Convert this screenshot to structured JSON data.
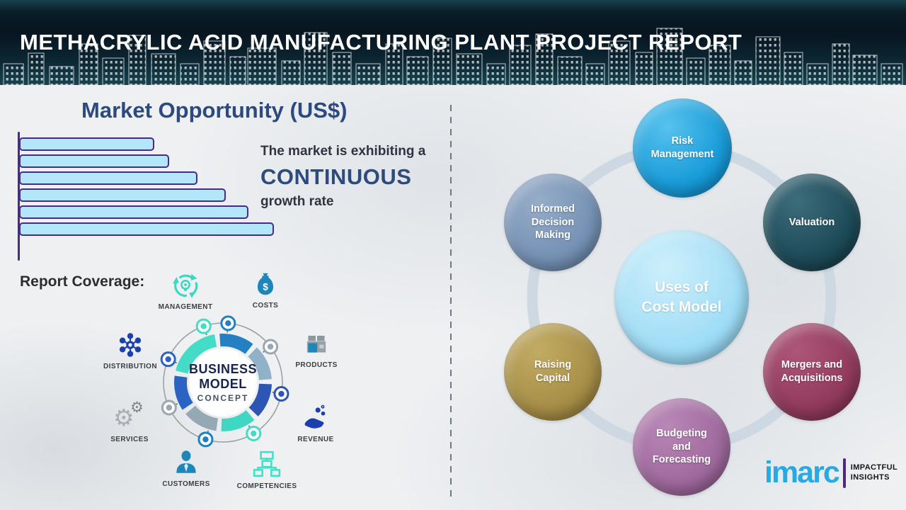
{
  "header": {
    "title": "METHACRYLIC ACID MANUFACTURING PLANT PROJECT REPORT"
  },
  "market": {
    "title": "Market Opportunity (US$)",
    "subtitle_line1": "The market is exhibiting a",
    "highlight": "CONTINUOUS",
    "subtitle_line2": "growth rate"
  },
  "chart_data": {
    "type": "bar",
    "orientation": "horizontal",
    "title": "Market Opportunity (US$)",
    "categories": [
      "",
      "",
      "",
      "",
      "",
      ""
    ],
    "values": [
      53,
      59,
      70,
      81,
      90,
      100
    ],
    "units": "relative (no axis tick labels shown)",
    "bar_fill": "#b3e5fb",
    "bar_border": "#4a2a85",
    "annotation": "The market is exhibiting a CONTINUOUS growth rate",
    "grid": false,
    "legend": false
  },
  "report_coverage": {
    "label": "Report Coverage:",
    "center": {
      "line1": "BUSINESS",
      "line2": "MODEL",
      "line3": "CONCEPT"
    },
    "items": [
      {
        "label": "MANAGEMENT",
        "icon": "management-icon"
      },
      {
        "label": "COSTS",
        "icon": "costs-icon"
      },
      {
        "label": "DISTRIBUTION",
        "icon": "distribution-icon"
      },
      {
        "label": "PRODUCTS",
        "icon": "products-icon"
      },
      {
        "label": "SERVICES",
        "icon": "services-icon"
      },
      {
        "label": "REVENUE",
        "icon": "revenue-icon"
      },
      {
        "label": "CUSTOMERS",
        "icon": "customers-icon"
      },
      {
        "label": "COMPETENCIES",
        "icon": "competencies-icon"
      }
    ],
    "ring": {
      "segments": [
        {
          "from": -52,
          "to": -10,
          "color": "#44dcc6"
        },
        {
          "from": -4,
          "to": 38,
          "color": "#2480c2"
        },
        {
          "from": 44,
          "to": 86,
          "color": "#91b1c8"
        },
        {
          "from": 92,
          "to": 134,
          "color": "#2d55b4"
        },
        {
          "from": 140,
          "to": 182,
          "color": "#40d7c2"
        },
        {
          "from": 188,
          "to": 230,
          "color": "#94a9b4"
        },
        {
          "from": 236,
          "to": 278,
          "color": "#2b63c3"
        },
        {
          "from": 284,
          "to": 326,
          "color": "#44dcc6"
        }
      ],
      "nodes": [
        {
          "angle": 5,
          "color": "#2480c2"
        },
        {
          "angle": 53,
          "color": "#9aa7b0"
        },
        {
          "angle": 101,
          "color": "#2d55b4"
        },
        {
          "angle": 149,
          "color": "#44dcc6"
        },
        {
          "angle": 197,
          "color": "#1f7fc0"
        },
        {
          "angle": 245,
          "color": "#9aa7b0"
        },
        {
          "angle": 293,
          "color": "#2b63c3"
        },
        {
          "angle": 341,
          "color": "#44dcc6"
        }
      ]
    }
  },
  "cost_model": {
    "center": {
      "label": "Uses of\nCost Model",
      "color": "#9edcf6",
      "highlight": "#cdeffb",
      "shadow": "#86cdec"
    },
    "circles": [
      {
        "label": "Risk\nManagement",
        "color": "#189bd8",
        "highlight": "#57c2ee",
        "shadow": "#0d86c4"
      },
      {
        "label": "Valuation",
        "color": "#1d4a57",
        "highlight": "#3d6c7a",
        "shadow": "#133843"
      },
      {
        "label": "Mergers and\nAcquisitions",
        "color": "#913a5d",
        "highlight": "#ad5679",
        "shadow": "#7a2e4d"
      },
      {
        "label": "Budgeting\nand\nForecasting",
        "color": "#9f699d",
        "highlight": "#b988b7",
        "shadow": "#8a5588"
      },
      {
        "label": "Raising\nCapital",
        "color": "#a78e47",
        "highlight": "#c2ab63",
        "shadow": "#917a36"
      },
      {
        "label": "Informed\nDecision\nMaking",
        "color": "#7591b4",
        "highlight": "#96adc8",
        "shadow": "#62809f"
      }
    ],
    "ring_color": "#cdd8e2"
  },
  "logo": {
    "brand": "imarc",
    "tagline_line1": "IMPACTFUL",
    "tagline_line2": "INSIGHTS"
  }
}
